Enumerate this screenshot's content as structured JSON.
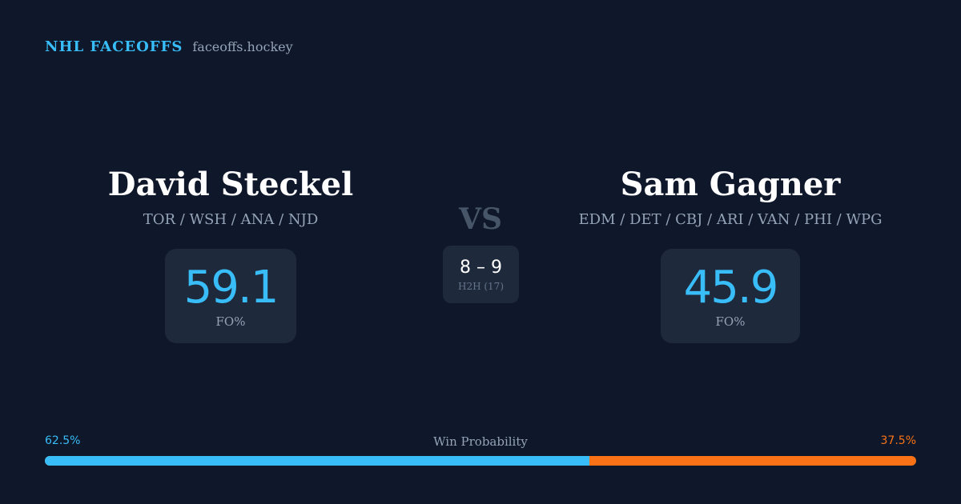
{
  "brand": {
    "title": "NHL FACEOFFS",
    "site": "faceoffs.hockey"
  },
  "player_left": {
    "name": "David Steckel",
    "teams": "TOR / WSH / ANA / NJD",
    "fo_value": "59.1",
    "fo_label": "FO%"
  },
  "vs_label": "VS",
  "head_to_head": {
    "score": "8 – 9",
    "label": "H2H (17)"
  },
  "player_right": {
    "name": "Sam Gagner",
    "teams": "EDM / DET / CBJ / ARI / VAN / PHI / WPG",
    "fo_value": "45.9",
    "fo_label": "FO%"
  },
  "win_probability": {
    "title": "Win Probability",
    "left_pct": "62.5%",
    "right_pct": "37.5%",
    "left_fraction": 0.625
  },
  "colors": {
    "background": "#0f172a",
    "card": "#1e293b",
    "accent_blue": "#38bdf8",
    "accent_orange": "#f97316"
  }
}
